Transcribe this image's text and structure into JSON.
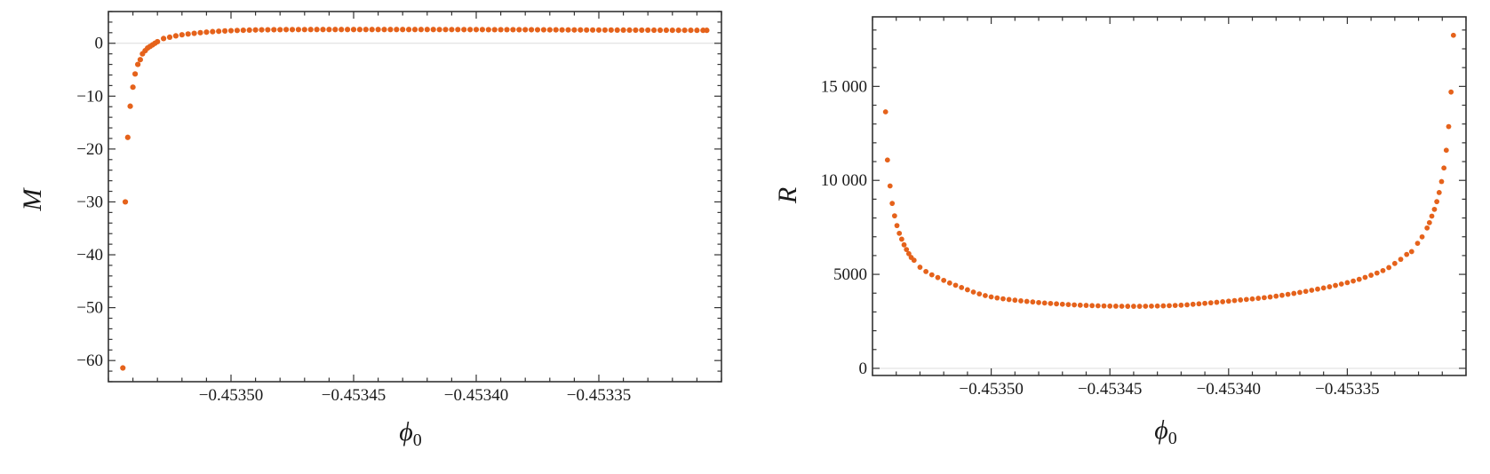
{
  "chart_data": [
    {
      "type": "scatter",
      "xlabel": {
        "symbol": "ϕ",
        "subscript": "0"
      },
      "ylabel": "M",
      "xlim": [
        -0.45355,
        -0.4533
      ],
      "ylim": [
        -64,
        6
      ],
      "x_ticks": [
        {
          "value": -0.4535,
          "label": "−0.45350"
        },
        {
          "value": -0.45345,
          "label": "−0.45345"
        },
        {
          "value": -0.4534,
          "label": "−0.45340"
        },
        {
          "value": -0.45335,
          "label": "−0.45335"
        }
      ],
      "x_minor_step": 1e-05,
      "y_ticks": [
        {
          "value": 0,
          "label": "0"
        },
        {
          "value": -10,
          "label": "−10"
        },
        {
          "value": -20,
          "label": "−20"
        },
        {
          "value": -30,
          "label": "−30"
        },
        {
          "value": -40,
          "label": "−40"
        },
        {
          "value": -50,
          "label": "−50"
        },
        {
          "value": -60,
          "label": "−60"
        }
      ],
      "y_minor_step": 2,
      "zero_line": true,
      "grid": false,
      "marker_color": "#e5621b",
      "points": [
        [
          -0.4535441,
          -61.4
        ],
        [
          -0.4535431,
          -30.0
        ],
        [
          -0.4535421,
          -17.8
        ],
        [
          -0.4535411,
          -11.9
        ],
        [
          -0.45354,
          -8.3
        ],
        [
          -0.4535391,
          -5.8
        ],
        [
          -0.453538,
          -4.0
        ],
        [
          -0.453537,
          -3.1
        ],
        [
          -0.4535361,
          -2.0
        ],
        [
          -0.453535,
          -1.4
        ],
        [
          -0.453534,
          -0.9
        ],
        [
          -0.453533,
          -0.6
        ],
        [
          -0.453532,
          -0.3
        ],
        [
          -0.453531,
          0.0
        ],
        [
          -0.45353,
          0.3
        ],
        [
          -0.4535275,
          0.9
        ],
        [
          -0.453525,
          1.15
        ],
        [
          -0.4535225,
          1.4
        ],
        [
          -0.45352,
          1.6
        ],
        [
          -0.4535175,
          1.75
        ],
        [
          -0.453515,
          1.88
        ],
        [
          -0.4535125,
          2.0
        ],
        [
          -0.45351,
          2.1
        ],
        [
          -0.4535075,
          2.2
        ],
        [
          -0.453505,
          2.27
        ],
        [
          -0.4535025,
          2.33
        ],
        [
          -0.4535,
          2.38
        ],
        [
          -0.4534975,
          2.42
        ],
        [
          -0.453495,
          2.46
        ],
        [
          -0.4534925,
          2.49
        ],
        [
          -0.45349,
          2.52
        ],
        [
          -0.4534875,
          2.54
        ],
        [
          -0.453485,
          2.55
        ],
        [
          -0.4534825,
          2.56
        ],
        [
          -0.45348,
          2.57
        ],
        [
          -0.4534775,
          2.58
        ],
        [
          -0.453475,
          2.58
        ],
        [
          -0.4534725,
          2.59
        ],
        [
          -0.45347,
          2.59
        ],
        [
          -0.4534675,
          2.6
        ],
        [
          -0.453465,
          2.6
        ],
        [
          -0.4534625,
          2.6
        ],
        [
          -0.45346,
          2.6
        ],
        [
          -0.4534575,
          2.6
        ],
        [
          -0.453455,
          2.6
        ],
        [
          -0.4534525,
          2.6
        ],
        [
          -0.45345,
          2.6
        ],
        [
          -0.4534475,
          2.6
        ],
        [
          -0.453445,
          2.6
        ],
        [
          -0.4534425,
          2.6
        ],
        [
          -0.45344,
          2.6
        ],
        [
          -0.4534375,
          2.6
        ],
        [
          -0.453435,
          2.6
        ],
        [
          -0.4534325,
          2.6
        ],
        [
          -0.45343,
          2.6
        ],
        [
          -0.4534275,
          2.6
        ],
        [
          -0.453425,
          2.6
        ],
        [
          -0.4534225,
          2.6
        ],
        [
          -0.45342,
          2.6
        ],
        [
          -0.4534175,
          2.6
        ],
        [
          -0.453415,
          2.59
        ],
        [
          -0.4534125,
          2.59
        ],
        [
          -0.45341,
          2.59
        ],
        [
          -0.4534075,
          2.59
        ],
        [
          -0.453405,
          2.58
        ],
        [
          -0.4534025,
          2.58
        ],
        [
          -0.4534,
          2.58
        ],
        [
          -0.4533975,
          2.58
        ],
        [
          -0.453395,
          2.57
        ],
        [
          -0.4533925,
          2.57
        ],
        [
          -0.45339,
          2.57
        ],
        [
          -0.4533875,
          2.57
        ],
        [
          -0.453385,
          2.57
        ],
        [
          -0.4533825,
          2.56
        ],
        [
          -0.45338,
          2.56
        ],
        [
          -0.4533775,
          2.56
        ],
        [
          -0.453375,
          2.55
        ],
        [
          -0.4533725,
          2.55
        ],
        [
          -0.45337,
          2.54
        ],
        [
          -0.4533675,
          2.54
        ],
        [
          -0.453365,
          2.53
        ],
        [
          -0.4533625,
          2.53
        ],
        [
          -0.45336,
          2.52
        ],
        [
          -0.4533575,
          2.52
        ],
        [
          -0.453355,
          2.51
        ],
        [
          -0.4533525,
          2.51
        ],
        [
          -0.45335,
          2.5
        ],
        [
          -0.4533475,
          2.5
        ],
        [
          -0.453345,
          2.5
        ],
        [
          -0.4533425,
          2.49
        ],
        [
          -0.45334,
          2.49
        ],
        [
          -0.4533375,
          2.49
        ],
        [
          -0.453335,
          2.48
        ],
        [
          -0.4533325,
          2.48
        ],
        [
          -0.45333,
          2.48
        ],
        [
          -0.4533275,
          2.47
        ],
        [
          -0.453325,
          2.47
        ],
        [
          -0.4533225,
          2.47
        ],
        [
          -0.45332,
          2.46
        ],
        [
          -0.4533175,
          2.46
        ],
        [
          -0.453315,
          2.46
        ],
        [
          -0.4533125,
          2.46
        ],
        [
          -0.45331,
          2.45
        ],
        [
          -0.4533075,
          2.45
        ],
        [
          -0.453306,
          2.45
        ]
      ]
    },
    {
      "type": "scatter",
      "xlabel": {
        "symbol": "ϕ",
        "subscript": "0"
      },
      "ylabel": "R",
      "xlim": [
        -0.45355,
        -0.4533
      ],
      "ylim": [
        -380,
        18700
      ],
      "x_ticks": [
        {
          "value": -0.4535,
          "label": "−0.45350"
        },
        {
          "value": -0.45345,
          "label": "−0.45345"
        },
        {
          "value": -0.4534,
          "label": "−0.45340"
        },
        {
          "value": -0.45335,
          "label": "−0.45335"
        }
      ],
      "x_minor_step": 1e-05,
      "y_ticks": [
        {
          "value": 0,
          "label": "0"
        },
        {
          "value": 5000,
          "label": "5000"
        },
        {
          "value": 10000,
          "label": "10 000"
        },
        {
          "value": 15000,
          "label": "15 000"
        }
      ],
      "y_minor_step": 1000,
      "zero_line": true,
      "grid": false,
      "marker_color": "#e5621b",
      "points": [
        [
          -0.4535445,
          13646
        ],
        [
          -0.4535437,
          11085
        ],
        [
          -0.4535426,
          9703
        ],
        [
          -0.4535417,
          8774
        ],
        [
          -0.4535407,
          8113
        ],
        [
          -0.4535397,
          7594
        ],
        [
          -0.4535387,
          7184
        ],
        [
          -0.4535377,
          6873
        ],
        [
          -0.4535367,
          6571
        ],
        [
          -0.4535357,
          6321
        ],
        [
          -0.4535347,
          6099
        ],
        [
          -0.4535337,
          5900
        ],
        [
          -0.4535325,
          5750
        ],
        [
          -0.45353,
          5380
        ],
        [
          -0.4535275,
          5150
        ],
        [
          -0.453525,
          4975
        ],
        [
          -0.4535225,
          4830
        ],
        [
          -0.45352,
          4680
        ],
        [
          -0.4535175,
          4540
        ],
        [
          -0.453515,
          4420
        ],
        [
          -0.4535125,
          4300
        ],
        [
          -0.45351,
          4180
        ],
        [
          -0.4535075,
          4060
        ],
        [
          -0.453505,
          3960
        ],
        [
          -0.4535025,
          3870
        ],
        [
          -0.4535,
          3800
        ],
        [
          -0.4534975,
          3745
        ],
        [
          -0.453495,
          3700
        ],
        [
          -0.4534925,
          3660
        ],
        [
          -0.45349,
          3625
        ],
        [
          -0.4534875,
          3590
        ],
        [
          -0.453485,
          3560
        ],
        [
          -0.4534825,
          3530
        ],
        [
          -0.45348,
          3500
        ],
        [
          -0.4534775,
          3475
        ],
        [
          -0.453475,
          3452
        ],
        [
          -0.4534725,
          3430
        ],
        [
          -0.45347,
          3410
        ],
        [
          -0.4534675,
          3392
        ],
        [
          -0.453465,
          3376
        ],
        [
          -0.4534625,
          3361
        ],
        [
          -0.45346,
          3348
        ],
        [
          -0.4534575,
          3337
        ],
        [
          -0.453455,
          3328
        ],
        [
          -0.4534525,
          3320
        ],
        [
          -0.45345,
          3313
        ],
        [
          -0.4534475,
          3308
        ],
        [
          -0.453445,
          3304
        ],
        [
          -0.4534425,
          3302
        ],
        [
          -0.45344,
          3301
        ],
        [
          -0.4534375,
          3302
        ],
        [
          -0.453435,
          3305
        ],
        [
          -0.4534325,
          3310
        ],
        [
          -0.45343,
          3316
        ],
        [
          -0.4534275,
          3324
        ],
        [
          -0.453425,
          3334
        ],
        [
          -0.4534225,
          3346
        ],
        [
          -0.45342,
          3360
        ],
        [
          -0.4534175,
          3380
        ],
        [
          -0.453415,
          3408
        ],
        [
          -0.4534125,
          3432
        ],
        [
          -0.45341,
          3458
        ],
        [
          -0.4534075,
          3485
        ],
        [
          -0.453405,
          3513
        ],
        [
          -0.4534025,
          3543
        ],
        [
          -0.4534,
          3574
        ],
        [
          -0.4533975,
          3606
        ],
        [
          -0.453395,
          3638
        ],
        [
          -0.4533925,
          3665
        ],
        [
          -0.45339,
          3693
        ],
        [
          -0.4533875,
          3725
        ],
        [
          -0.453385,
          3760
        ],
        [
          -0.4533825,
          3798
        ],
        [
          -0.45338,
          3840
        ],
        [
          -0.4533775,
          3885
        ],
        [
          -0.453375,
          3935
        ],
        [
          -0.4533725,
          3985
        ],
        [
          -0.45337,
          4040
        ],
        [
          -0.4533675,
          4095
        ],
        [
          -0.453365,
          4155
        ],
        [
          -0.4533625,
          4215
        ],
        [
          -0.45336,
          4275
        ],
        [
          -0.4533575,
          4340
        ],
        [
          -0.453355,
          4410
        ],
        [
          -0.4533525,
          4485
        ],
        [
          -0.45335,
          4560
        ],
        [
          -0.4533475,
          4645
        ],
        [
          -0.453345,
          4735
        ],
        [
          -0.4533425,
          4840
        ],
        [
          -0.45334,
          4953
        ],
        [
          -0.4533375,
          5070
        ],
        [
          -0.453335,
          5200
        ],
        [
          -0.4533325,
          5360
        ],
        [
          -0.45333,
          5580
        ],
        [
          -0.4533275,
          5800
        ],
        [
          -0.453325,
          6060
        ],
        [
          -0.4533229,
          6212
        ],
        [
          -0.4533204,
          6651
        ],
        [
          -0.4533185,
          6995
        ],
        [
          -0.4533164,
          7467
        ],
        [
          -0.4533154,
          7750
        ],
        [
          -0.4533144,
          8099
        ],
        [
          -0.4533133,
          8458
        ],
        [
          -0.4533123,
          8868
        ],
        [
          -0.4533113,
          9354
        ],
        [
          -0.4533103,
          9938
        ],
        [
          -0.4533093,
          10660
        ],
        [
          -0.4533083,
          11604
        ],
        [
          -0.4533073,
          12862
        ],
        [
          -0.4533063,
          14701
        ],
        [
          -0.4533053,
          17720
        ]
      ]
    }
  ]
}
